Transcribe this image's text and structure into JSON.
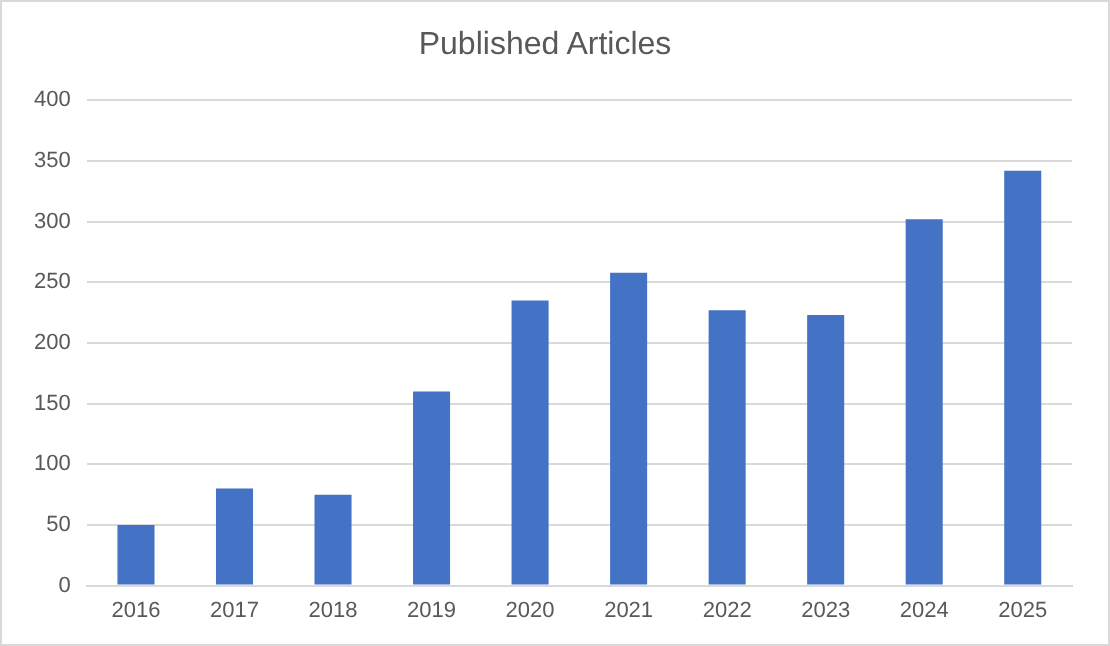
{
  "chart_data": {
    "type": "bar",
    "title": "Published Articles",
    "categories": [
      "2016",
      "2017",
      "2018",
      "2019",
      "2020",
      "2021",
      "2022",
      "2023",
      "2024",
      "2025"
    ],
    "values": [
      50,
      80,
      75,
      160,
      235,
      258,
      227,
      223,
      302,
      342
    ],
    "color": "#4472c4",
    "ylim": [
      0,
      400
    ],
    "yticks": [
      0,
      50,
      100,
      150,
      200,
      250,
      300,
      350,
      400
    ],
    "grid": "y",
    "legend": false
  }
}
